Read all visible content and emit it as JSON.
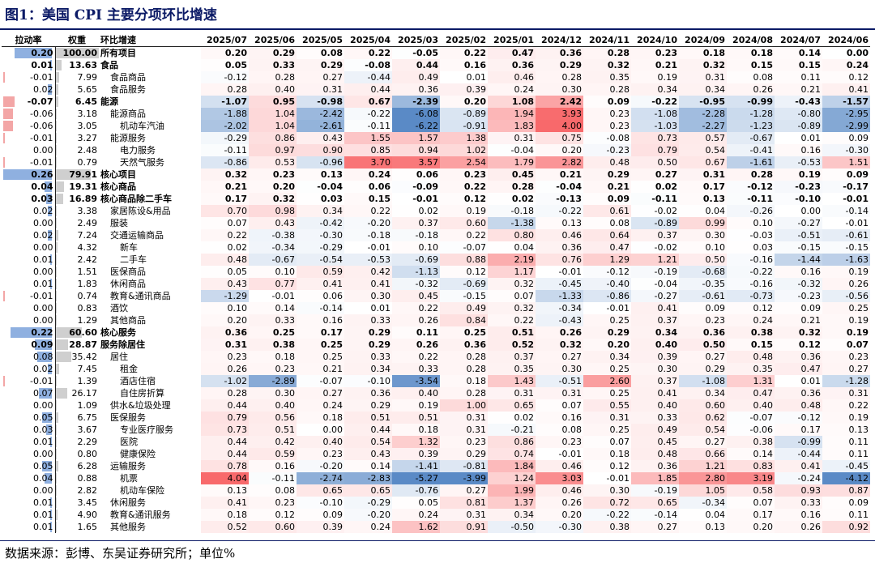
{
  "title": "图1：美国 CPI 主要分项环比增速",
  "source": "数据来源：彭博、东吴证券研究所；单位%",
  "columns": {
    "pull": "拉动率",
    "weight": "权重",
    "name": "环比增速"
  },
  "months": [
    "2025/07",
    "2025/06",
    "2025/05",
    "2025/04",
    "2025/03",
    "2025/02",
    "2025/01",
    "2024/12",
    "2024/11",
    "2024/10",
    "2024/09",
    "2024/08",
    "2024/07",
    "2024/06"
  ],
  "chart_data": {
    "type": "table",
    "rows": [
      {
        "name": "所有项目",
        "level": 0,
        "bold": true,
        "pull": "0.20",
        "weight": "100.00",
        "values": [
          "0.20",
          "0.29",
          "0.08",
          "0.22",
          "-0.05",
          "0.22",
          "0.47",
          "0.36",
          "0.28",
          "0.23",
          "0.18",
          "0.18",
          "0.14",
          "0.00"
        ]
      },
      {
        "name": "食品",
        "level": 0,
        "bold": true,
        "pull": "0.01",
        "weight": "13.63",
        "values": [
          "0.05",
          "0.33",
          "0.29",
          "-0.08",
          "0.44",
          "0.16",
          "0.36",
          "0.29",
          "0.32",
          "0.21",
          "0.32",
          "0.15",
          "0.15",
          "0.24"
        ]
      },
      {
        "name": "食品商品",
        "level": 1,
        "bold": false,
        "pull": "-0.01",
        "weight": "7.99",
        "values": [
          "-0.12",
          "0.28",
          "0.27",
          "-0.44",
          "0.49",
          "0.01",
          "0.46",
          "0.28",
          "0.35",
          "0.19",
          "0.31",
          "0.08",
          "0.11",
          "0.12"
        ]
      },
      {
        "name": "食品服务",
        "level": 1,
        "bold": false,
        "pull": "0.02",
        "weight": "5.65",
        "values": [
          "0.28",
          "0.40",
          "0.31",
          "0.44",
          "0.36",
          "0.39",
          "0.24",
          "0.30",
          "0.28",
          "0.34",
          "0.34",
          "0.26",
          "0.21",
          "0.41"
        ]
      },
      {
        "name": "能源",
        "level": 0,
        "bold": true,
        "pull": "-0.07",
        "weight": "6.45",
        "values": [
          "-1.07",
          "0.95",
          "-0.98",
          "0.67",
          "-2.39",
          "0.20",
          "1.08",
          "2.42",
          "0.09",
          "-0.22",
          "-0.95",
          "-0.99",
          "-0.43",
          "-1.57"
        ]
      },
      {
        "name": "能源商品",
        "level": 1,
        "bold": false,
        "pull": "-0.06",
        "weight": "3.18",
        "values": [
          "-1.88",
          "1.04",
          "-2.42",
          "-0.22",
          "-6.08",
          "-0.89",
          "1.94",
          "3.93",
          "0.23",
          "-1.08",
          "-2.28",
          "-1.28",
          "-0.80",
          "-2.95"
        ]
      },
      {
        "name": "机动车汽油",
        "level": 2,
        "bold": false,
        "pull": "-0.06",
        "weight": "3.05",
        "values": [
          "-2.02",
          "1.04",
          "-2.61",
          "-0.11",
          "-6.22",
          "-0.91",
          "1.83",
          "4.00",
          "0.23",
          "-1.03",
          "-2.27",
          "-1.23",
          "-0.89",
          "-2.99"
        ]
      },
      {
        "name": "能源服务",
        "level": 1,
        "bold": false,
        "pull": "-0.01",
        "weight": "3.27",
        "values": [
          "-0.29",
          "0.86",
          "0.43",
          "1.55",
          "1.57",
          "1.38",
          "0.31",
          "0.75",
          "-0.08",
          "0.73",
          "0.57",
          "-0.67",
          "0.01",
          "0.09"
        ]
      },
      {
        "name": "电力服务",
        "level": 2,
        "bold": false,
        "pull": "0.00",
        "weight": "2.48",
        "values": [
          "-0.11",
          "0.97",
          "0.90",
          "0.85",
          "0.94",
          "1.02",
          "-0.04",
          "0.20",
          "-0.23",
          "0.79",
          "0.54",
          "-0.41",
          "0.16",
          "-0.30"
        ]
      },
      {
        "name": "天然气服务",
        "level": 2,
        "bold": false,
        "pull": "-0.01",
        "weight": "0.79",
        "values": [
          "-0.86",
          "0.53",
          "-0.96",
          "3.70",
          "3.57",
          "2.54",
          "1.79",
          "2.82",
          "0.48",
          "0.50",
          "0.67",
          "-1.61",
          "-0.53",
          "1.51"
        ]
      },
      {
        "name": "核心项目",
        "level": 0,
        "bold": true,
        "pull": "0.26",
        "weight": "79.91",
        "values": [
          "0.32",
          "0.23",
          "0.13",
          "0.24",
          "0.06",
          "0.23",
          "0.45",
          "0.21",
          "0.29",
          "0.27",
          "0.31",
          "0.28",
          "0.19",
          "0.09"
        ]
      },
      {
        "name": "核心商品",
        "level": 0,
        "bold": true,
        "pull": "0.04",
        "weight": "19.31",
        "values": [
          "0.21",
          "0.20",
          "-0.04",
          "0.06",
          "-0.09",
          "0.22",
          "0.28",
          "-0.04",
          "0.21",
          "0.02",
          "0.17",
          "-0.12",
          "-0.23",
          "-0.17"
        ]
      },
      {
        "name": "核心商品除二手车",
        "level": 0,
        "bold": true,
        "pull": "0.03",
        "weight": "16.89",
        "values": [
          "0.17",
          "0.32",
          "0.03",
          "0.15",
          "-0.01",
          "0.12",
          "0.02",
          "-0.13",
          "0.09",
          "-0.11",
          "0.13",
          "-0.11",
          "-0.10",
          "-0.01"
        ]
      },
      {
        "name": "家居陈设&用品",
        "level": 1,
        "bold": false,
        "pull": "0.02",
        "weight": "3.38",
        "values": [
          "0.70",
          "0.98",
          "0.34",
          "0.22",
          "0.02",
          "0.19",
          "-0.18",
          "-0.22",
          "0.61",
          "-0.02",
          "0.04",
          "-0.26",
          "0.00",
          "-0.14"
        ]
      },
      {
        "name": "服装",
        "level": 1,
        "bold": false,
        "pull": "0.00",
        "weight": "2.49",
        "values": [
          "0.07",
          "0.43",
          "-0.42",
          "-0.20",
          "0.37",
          "0.60",
          "-1.38",
          "0.13",
          "0.08",
          "-0.89",
          "0.99",
          "0.10",
          "-0.27",
          "-0.01"
        ]
      },
      {
        "name": "交通运输商品",
        "level": 1,
        "bold": false,
        "pull": "0.02",
        "weight": "7.24",
        "values": [
          "0.22",
          "-0.38",
          "-0.30",
          "-0.18",
          "-0.18",
          "0.22",
          "0.80",
          "0.46",
          "0.64",
          "0.37",
          "0.30",
          "-0.03",
          "-0.51",
          "-0.61"
        ]
      },
      {
        "name": "新车",
        "level": 2,
        "bold": false,
        "pull": "0.00",
        "weight": "4.32",
        "values": [
          "0.02",
          "-0.34",
          "-0.29",
          "-0.01",
          "0.10",
          "-0.07",
          "0.04",
          "0.36",
          "0.47",
          "-0.02",
          "0.10",
          "0.03",
          "-0.15",
          "-0.15"
        ]
      },
      {
        "name": "二手车",
        "level": 2,
        "bold": false,
        "pull": "0.01",
        "weight": "2.42",
        "values": [
          "0.48",
          "-0.67",
          "-0.54",
          "-0.53",
          "-0.69",
          "0.88",
          "2.19",
          "0.76",
          "1.29",
          "1.21",
          "0.50",
          "-0.16",
          "-1.44",
          "-1.63"
        ]
      },
      {
        "name": "医保商品",
        "level": 1,
        "bold": false,
        "pull": "0.00",
        "weight": "1.51",
        "values": [
          "0.05",
          "0.10",
          "0.59",
          "0.42",
          "-1.13",
          "0.12",
          "1.17",
          "-0.01",
          "-0.12",
          "-0.19",
          "-0.68",
          "-0.22",
          "0.16",
          "0.19"
        ]
      },
      {
        "name": "休闲商品",
        "level": 1,
        "bold": false,
        "pull": "0.01",
        "weight": "1.83",
        "values": [
          "0.43",
          "0.77",
          "0.41",
          "0.41",
          "-0.32",
          "-0.69",
          "0.32",
          "-0.45",
          "-0.40",
          "-0.04",
          "-0.35",
          "-0.16",
          "-0.32",
          "0.26"
        ]
      },
      {
        "name": "教育&通讯商品",
        "level": 1,
        "bold": false,
        "pull": "-0.01",
        "weight": "0.74",
        "values": [
          "-1.29",
          "-0.01",
          "0.06",
          "0.30",
          "0.45",
          "-0.15",
          "0.07",
          "-1.33",
          "-0.86",
          "-0.27",
          "-0.61",
          "-0.73",
          "-0.23",
          "-0.56"
        ]
      },
      {
        "name": "酒饮",
        "level": 1,
        "bold": false,
        "pull": "0.00",
        "weight": "0.83",
        "values": [
          "0.10",
          "0.14",
          "-0.14",
          "0.01",
          "0.22",
          "0.49",
          "0.32",
          "-0.34",
          "-0.01",
          "0.41",
          "0.09",
          "0.12",
          "0.09",
          "0.25"
        ]
      },
      {
        "name": "其他商品",
        "level": 1,
        "bold": false,
        "pull": "0.00",
        "weight": "1.29",
        "values": [
          "0.20",
          "0.33",
          "0.16",
          "0.33",
          "0.26",
          "0.84",
          "0.22",
          "-0.43",
          "0.25",
          "0.37",
          "0.23",
          "0.24",
          "0.21",
          "0.19"
        ]
      },
      {
        "name": "核心服务",
        "level": 0,
        "bold": true,
        "pull": "0.22",
        "weight": "60.60",
        "values": [
          "0.36",
          "0.25",
          "0.17",
          "0.29",
          "0.11",
          "0.25",
          "0.51",
          "0.26",
          "0.29",
          "0.34",
          "0.36",
          "0.38",
          "0.32",
          "0.19"
        ]
      },
      {
        "name": "服务除居住",
        "level": 0,
        "bold": true,
        "pull": "0.09",
        "weight": "28.87",
        "values": [
          "0.31",
          "0.38",
          "0.25",
          "0.29",
          "0.26",
          "0.36",
          "0.52",
          "0.32",
          "0.20",
          "0.40",
          "0.50",
          "0.15",
          "0.12",
          "0.07"
        ]
      },
      {
        "name": "居住",
        "level": 1,
        "bold": false,
        "pull": "0.08",
        "weight": "35.42",
        "values": [
          "0.23",
          "0.18",
          "0.25",
          "0.33",
          "0.22",
          "0.28",
          "0.37",
          "0.27",
          "0.34",
          "0.39",
          "0.27",
          "0.48",
          "0.36",
          "0.23"
        ]
      },
      {
        "name": "租金",
        "level": 2,
        "bold": false,
        "pull": "0.02",
        "weight": "7.45",
        "values": [
          "0.26",
          "0.23",
          "0.21",
          "0.34",
          "0.33",
          "0.28",
          "0.35",
          "0.30",
          "0.25",
          "0.30",
          "0.29",
          "0.35",
          "0.47",
          "0.27"
        ]
      },
      {
        "name": "酒店住宿",
        "level": 2,
        "bold": false,
        "pull": "-0.01",
        "weight": "1.39",
        "values": [
          "-1.02",
          "-2.89",
          "-0.07",
          "-0.10",
          "-3.54",
          "0.18",
          "1.43",
          "-0.51",
          "2.60",
          "0.37",
          "-1.08",
          "1.31",
          "0.01",
          "-1.28"
        ]
      },
      {
        "name": "自住房折算",
        "level": 2,
        "bold": false,
        "pull": "0.07",
        "weight": "26.17",
        "values": [
          "0.28",
          "0.30",
          "0.27",
          "0.36",
          "0.40",
          "0.28",
          "0.31",
          "0.31",
          "0.25",
          "0.41",
          "0.34",
          "0.47",
          "0.36",
          "0.31"
        ]
      },
      {
        "name": "供水&垃圾处理",
        "level": 1,
        "bold": false,
        "pull": "0.00",
        "weight": "1.09",
        "values": [
          "0.44",
          "0.40",
          "0.24",
          "0.29",
          "0.19",
          "1.00",
          "0.65",
          "0.07",
          "0.55",
          "0.40",
          "0.60",
          "0.40",
          "0.48",
          "0.22"
        ]
      },
      {
        "name": "医保服务",
        "level": 1,
        "bold": false,
        "pull": "0.05",
        "weight": "6.75",
        "values": [
          "0.79",
          "0.56",
          "0.18",
          "0.51",
          "0.51",
          "0.31",
          "0.02",
          "0.16",
          "0.31",
          "0.33",
          "0.62",
          "-0.07",
          "-0.12",
          "0.19"
        ]
      },
      {
        "name": "专业医疗服务",
        "level": 2,
        "bold": false,
        "pull": "0.03",
        "weight": "3.67",
        "values": [
          "0.73",
          "0.51",
          "0.00",
          "0.44",
          "0.18",
          "0.31",
          "-0.21",
          "0.08",
          "0.25",
          "0.49",
          "0.54",
          "-0.06",
          "0.17",
          "0.13"
        ]
      },
      {
        "name": "医院",
        "level": 2,
        "bold": false,
        "pull": "0.01",
        "weight": "2.29",
        "values": [
          "0.44",
          "0.42",
          "0.40",
          "0.54",
          "1.32",
          "0.23",
          "0.86",
          "0.23",
          "0.07",
          "0.45",
          "0.27",
          "0.38",
          "-0.99",
          "0.11"
        ]
      },
      {
        "name": "健康保险",
        "level": 2,
        "bold": false,
        "pull": "0.00",
        "weight": "0.80",
        "values": [
          "0.44",
          "0.59",
          "0.23",
          "0.43",
          "0.39",
          "0.29",
          "0.74",
          "-0.01",
          "0.18",
          "0.48",
          "0.66",
          "0.14",
          "-0.44",
          "0.11"
        ]
      },
      {
        "name": "运输服务",
        "level": 1,
        "bold": false,
        "pull": "0.05",
        "weight": "6.28",
        "values": [
          "0.78",
          "0.16",
          "-0.20",
          "0.14",
          "-1.41",
          "-0.81",
          "1.84",
          "0.46",
          "0.12",
          "0.36",
          "1.21",
          "0.83",
          "0.41",
          "-0.45"
        ]
      },
      {
        "name": "机票",
        "level": 2,
        "bold": false,
        "pull": "0.04",
        "weight": "0.88",
        "values": [
          "4.04",
          "-0.11",
          "-2.74",
          "-2.83",
          "-5.27",
          "-3.99",
          "1.24",
          "3.03",
          "-0.01",
          "1.85",
          "2.80",
          "3.19",
          "-0.24",
          "-4.12"
        ]
      },
      {
        "name": "机动车保险",
        "level": 2,
        "bold": false,
        "pull": "0.00",
        "weight": "2.82",
        "values": [
          "0.13",
          "0.08",
          "0.65",
          "0.65",
          "-0.76",
          "0.27",
          "1.99",
          "0.46",
          "0.30",
          "-0.19",
          "1.05",
          "0.58",
          "0.93",
          "0.87"
        ]
      },
      {
        "name": "休闲服务",
        "level": 1,
        "bold": false,
        "pull": "0.01",
        "weight": "3.45",
        "values": [
          "0.41",
          "0.23",
          "-0.10",
          "-0.29",
          "0.05",
          "0.81",
          "1.37",
          "0.26",
          "0.72",
          "0.65",
          "-0.34",
          "0.07",
          "0.33",
          "0.09"
        ]
      },
      {
        "name": "教育&通讯服务",
        "level": 1,
        "bold": false,
        "pull": "0.01",
        "weight": "4.90",
        "values": [
          "0.18",
          "0.12",
          "0.09",
          "-0.20",
          "0.24",
          "0.31",
          "0.34",
          "0.20",
          "-0.22",
          "-0.14",
          "0.04",
          "0.17",
          "0.16",
          "0.11"
        ]
      },
      {
        "name": "其他服务",
        "level": 1,
        "bold": false,
        "pull": "0.01",
        "weight": "1.65",
        "values": [
          "0.52",
          "0.60",
          "0.39",
          "0.24",
          "1.62",
          "0.91",
          "-0.50",
          "-0.30",
          "0.38",
          "0.27",
          "0.13",
          "0.20",
          "0.26",
          "0.92"
        ]
      }
    ]
  }
}
